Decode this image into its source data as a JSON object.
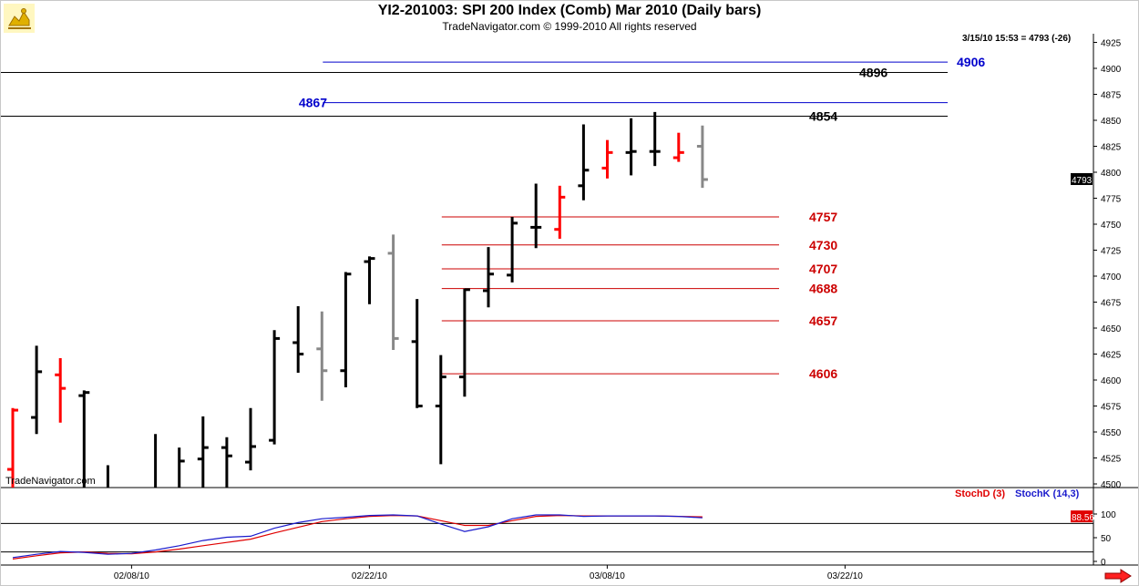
{
  "header": {
    "title": "YI2-201003:  SPI 200 Index (Comb) Mar 2010  (Daily bars)",
    "subtitle": "TradeNavigator.com © 1999-2010 All rights reserved",
    "quote": "3/15/10 15:53 = 4793 (-26)"
  },
  "watermark": "TradeNavigator.com",
  "icons": {
    "logo": "trading-bull-logo-icon",
    "next": "red-right-arrow-icon"
  },
  "colors": {
    "up": "#000000",
    "down": "#ff0000",
    "gray": "#888888",
    "support": "#cc0000",
    "resistance_blue": "#0000cc",
    "resistance_black": "#000000",
    "stoch_d": "#e00000",
    "stoch_k": "#1a1acc"
  },
  "chart_data": [
    {
      "type": "ohlc",
      "title": "YI2-201003:  SPI 200 Index (Comb) Mar 2010  (Daily bars)",
      "ylim": [
        4495,
        4935
      ],
      "y_ticks": [
        4500,
        4525,
        4550,
        4575,
        4600,
        4625,
        4650,
        4675,
        4700,
        4725,
        4750,
        4775,
        4800,
        4825,
        4850,
        4875,
        4900,
        4925
      ],
      "x_ticks": [
        {
          "label": "02/08/10",
          "index": 4
        },
        {
          "label": "02/22/10",
          "index": 14
        },
        {
          "label": "03/08/10",
          "index": 24
        },
        {
          "label": "03/22/10",
          "index": 34
        }
      ],
      "last_value_label": "4793",
      "bars": [
        {
          "o": 4514,
          "h": 4573,
          "l": 4480,
          "c": 4571,
          "color": "red"
        },
        {
          "o": 4564,
          "h": 4633,
          "l": 4548,
          "c": 4608,
          "color": "black"
        },
        {
          "o": 4605,
          "h": 4621,
          "l": 4559,
          "c": 4592,
          "color": "red"
        },
        {
          "o": 4585,
          "h": 4590,
          "l": 4480,
          "c": 4588,
          "color": "black"
        },
        {
          "o": 4480,
          "h": 4518,
          "l": 4470,
          "c": 4475,
          "color": "black"
        },
        {
          "o": 4470,
          "h": 4480,
          "l": 4460,
          "c": 4465,
          "color": "black"
        },
        {
          "o": 4485,
          "h": 4548,
          "l": 4480,
          "c": 4485,
          "color": "black"
        },
        {
          "o": 4480,
          "h": 4535,
          "l": 4480,
          "c": 4522,
          "color": "black"
        },
        {
          "o": 4524,
          "h": 4565,
          "l": 4480,
          "c": 4535,
          "color": "black"
        },
        {
          "o": 4535,
          "h": 4545,
          "l": 4480,
          "c": 4527,
          "color": "black"
        },
        {
          "o": 4521,
          "h": 4573,
          "l": 4513,
          "c": 4536,
          "color": "black"
        },
        {
          "o": 4542,
          "h": 4648,
          "l": 4538,
          "c": 4640,
          "color": "black"
        },
        {
          "o": 4636,
          "h": 4671,
          "l": 4607,
          "c": 4625,
          "color": "black"
        },
        {
          "o": 4630,
          "h": 4666,
          "l": 4580,
          "c": 4609,
          "color": "gray"
        },
        {
          "o": 4609,
          "h": 4704,
          "l": 4593,
          "c": 4702,
          "color": "black"
        },
        {
          "o": 4714,
          "h": 4719,
          "l": 4673,
          "c": 4717,
          "color": "black"
        },
        {
          "o": 4722,
          "h": 4740,
          "l": 4629,
          "c": 4640,
          "color": "gray"
        },
        {
          "o": 4637,
          "h": 4678,
          "l": 4573,
          "c": 4575,
          "color": "black"
        },
        {
          "o": 4575,
          "h": 4624,
          "l": 4519,
          "c": 4603,
          "color": "black"
        },
        {
          "o": 4603,
          "h": 4688,
          "l": 4584,
          "c": 4687,
          "color": "black"
        },
        {
          "o": 4686,
          "h": 4728,
          "l": 4670,
          "c": 4702,
          "color": "black"
        },
        {
          "o": 4701,
          "h": 4757,
          "l": 4694,
          "c": 4751,
          "color": "black"
        },
        {
          "o": 4747,
          "h": 4789,
          "l": 4727,
          "c": 4747,
          "color": "black"
        },
        {
          "o": 4745,
          "h": 4787,
          "l": 4736,
          "c": 4776,
          "color": "red"
        },
        {
          "o": 4787,
          "h": 4846,
          "l": 4773,
          "c": 4802,
          "color": "black"
        },
        {
          "o": 4804,
          "h": 4831,
          "l": 4794,
          "c": 4819,
          "color": "red"
        },
        {
          "o": 4819,
          "h": 4852,
          "l": 4797,
          "c": 4820,
          "color": "black"
        },
        {
          "o": 4820,
          "h": 4858,
          "l": 4806,
          "c": 4820,
          "color": "black"
        },
        {
          "o": 4814,
          "h": 4838,
          "l": 4810,
          "c": 4819,
          "color": "red"
        },
        {
          "o": 4825,
          "h": 4845,
          "l": 4785,
          "c": 4793,
          "color": "gray"
        }
      ],
      "levels": [
        {
          "value": 4906,
          "label": "4906",
          "color": "blue",
          "from_index": 13
        },
        {
          "value": 4896,
          "label": "4896",
          "color": "black",
          "from_index": 0
        },
        {
          "value": 4867,
          "label": "4867",
          "color": "blue",
          "from_index": 13
        },
        {
          "value": 4854,
          "label": "4854",
          "color": "black",
          "from_index": 0
        },
        {
          "value": 4757,
          "label": "4757",
          "color": "red",
          "from_index": 18
        },
        {
          "value": 4730,
          "label": "4730",
          "color": "red",
          "from_index": 18
        },
        {
          "value": 4707,
          "label": "4707",
          "color": "red",
          "from_index": 18
        },
        {
          "value": 4688,
          "label": "4688",
          "color": "red",
          "from_index": 18
        },
        {
          "value": 4657,
          "label": "4657",
          "color": "red",
          "from_index": 18
        },
        {
          "value": 4606,
          "label": "4606",
          "color": "red",
          "from_index": 18
        }
      ]
    },
    {
      "type": "line",
      "ylim": [
        -10,
        110
      ],
      "y_ticks": [
        {
          "value": 0,
          "label": "0"
        },
        {
          "value": 50,
          "label": "50"
        },
        {
          "value": 100,
          "label": "100"
        }
      ],
      "value_label": "88.56",
      "reference_lines": [
        20,
        80
      ],
      "series": [
        {
          "name": "StochD (3)",
          "color": "red",
          "values": [
            5,
            12,
            18,
            20,
            17,
            16,
            20,
            26,
            33,
            40,
            47,
            60,
            72,
            84,
            90,
            95,
            97,
            96,
            86,
            76,
            76,
            86,
            95,
            97,
            96,
            96,
            96,
            96,
            95,
            94
          ]
        },
        {
          "name": "StochK (14,3)",
          "color": "blue",
          "values": [
            8,
            15,
            21,
            19,
            15,
            17,
            24,
            33,
            44,
            51,
            53,
            70,
            82,
            90,
            93,
            97,
            98,
            96,
            79,
            63,
            73,
            90,
            98,
            98,
            95,
            96,
            96,
            96,
            95,
            92
          ]
        }
      ]
    }
  ]
}
